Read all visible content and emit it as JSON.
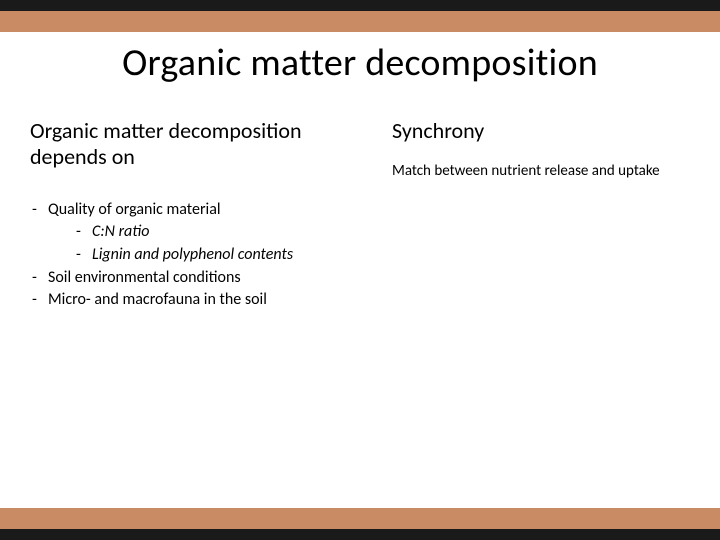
{
  "colors": {
    "dark_band": "#1a1a1a",
    "orange_band": "#c98b64",
    "background": "#ffffff",
    "text": "#000000"
  },
  "title": "Organic matter decomposition",
  "left": {
    "heading": "Organic matter decomposition depends on",
    "items": [
      {
        "text": "Quality of organic material",
        "sub": [
          {
            "text": "C:N ratio"
          },
          {
            "text": "Lignin and polyphenol contents"
          }
        ]
      },
      {
        "text": "Soil environmental conditions"
      },
      {
        "text": "Micro- and macrofauna in the soil"
      }
    ]
  },
  "right": {
    "heading": "Synchrony",
    "sub": "Match between nutrient release and uptake"
  }
}
